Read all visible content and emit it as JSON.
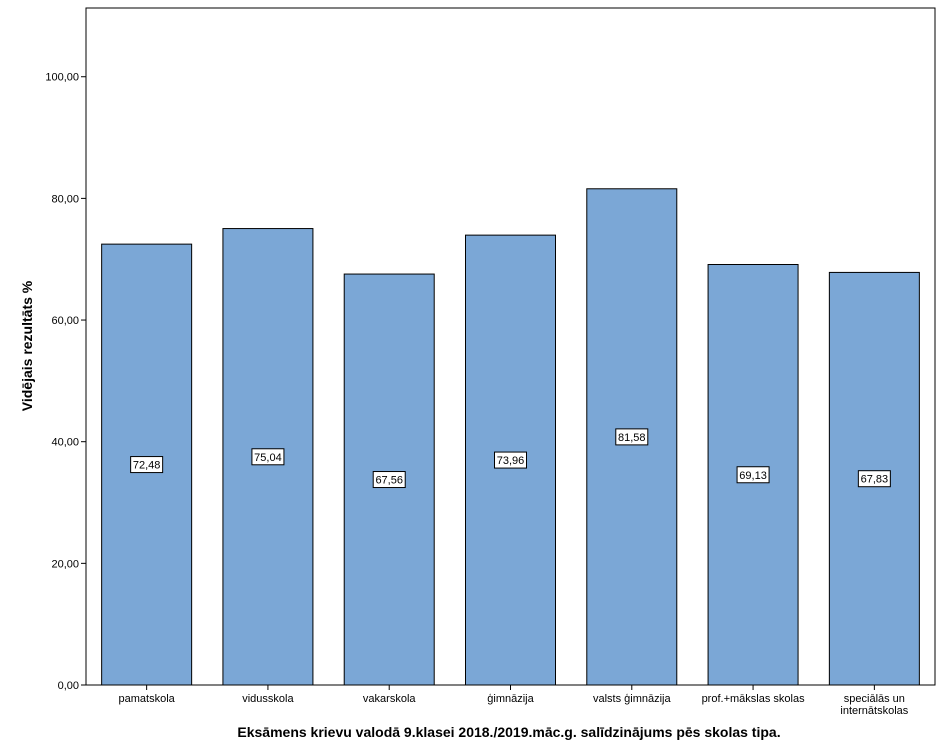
{
  "chart_data": {
    "type": "bar",
    "title": "",
    "xlabel": "Eksāmens krievu valodā 9.klasei 2018./2019.māc.g. salīdzinājums pēs skolas tipa.",
    "ylabel": "Vidējais rezultāts %",
    "categories": [
      [
        "pamatskola"
      ],
      [
        "vidusskola"
      ],
      [
        "vakarskola"
      ],
      [
        "ģimnāzija"
      ],
      [
        "valsts ģimnāzija"
      ],
      [
        "prof.+mākslas skolas"
      ],
      [
        "speciālās un",
        "internātskolas"
      ]
    ],
    "values": [
      72.48,
      75.04,
      67.56,
      73.96,
      81.58,
      69.13,
      67.83
    ],
    "value_labels": [
      "72,48",
      "75,04",
      "67,56",
      "73,96",
      "81,58",
      "69,13",
      "67,83"
    ],
    "ylim": [
      0,
      100
    ],
    "yticks": [
      0,
      20,
      40,
      60,
      80,
      100
    ],
    "ytick_labels": [
      "0,00",
      "20,00",
      "40,00",
      "60,00",
      "80,00",
      "100,00"
    ],
    "grid": false,
    "bar_color": "#7BA7D6",
    "bar_edge_color": "#000000"
  }
}
